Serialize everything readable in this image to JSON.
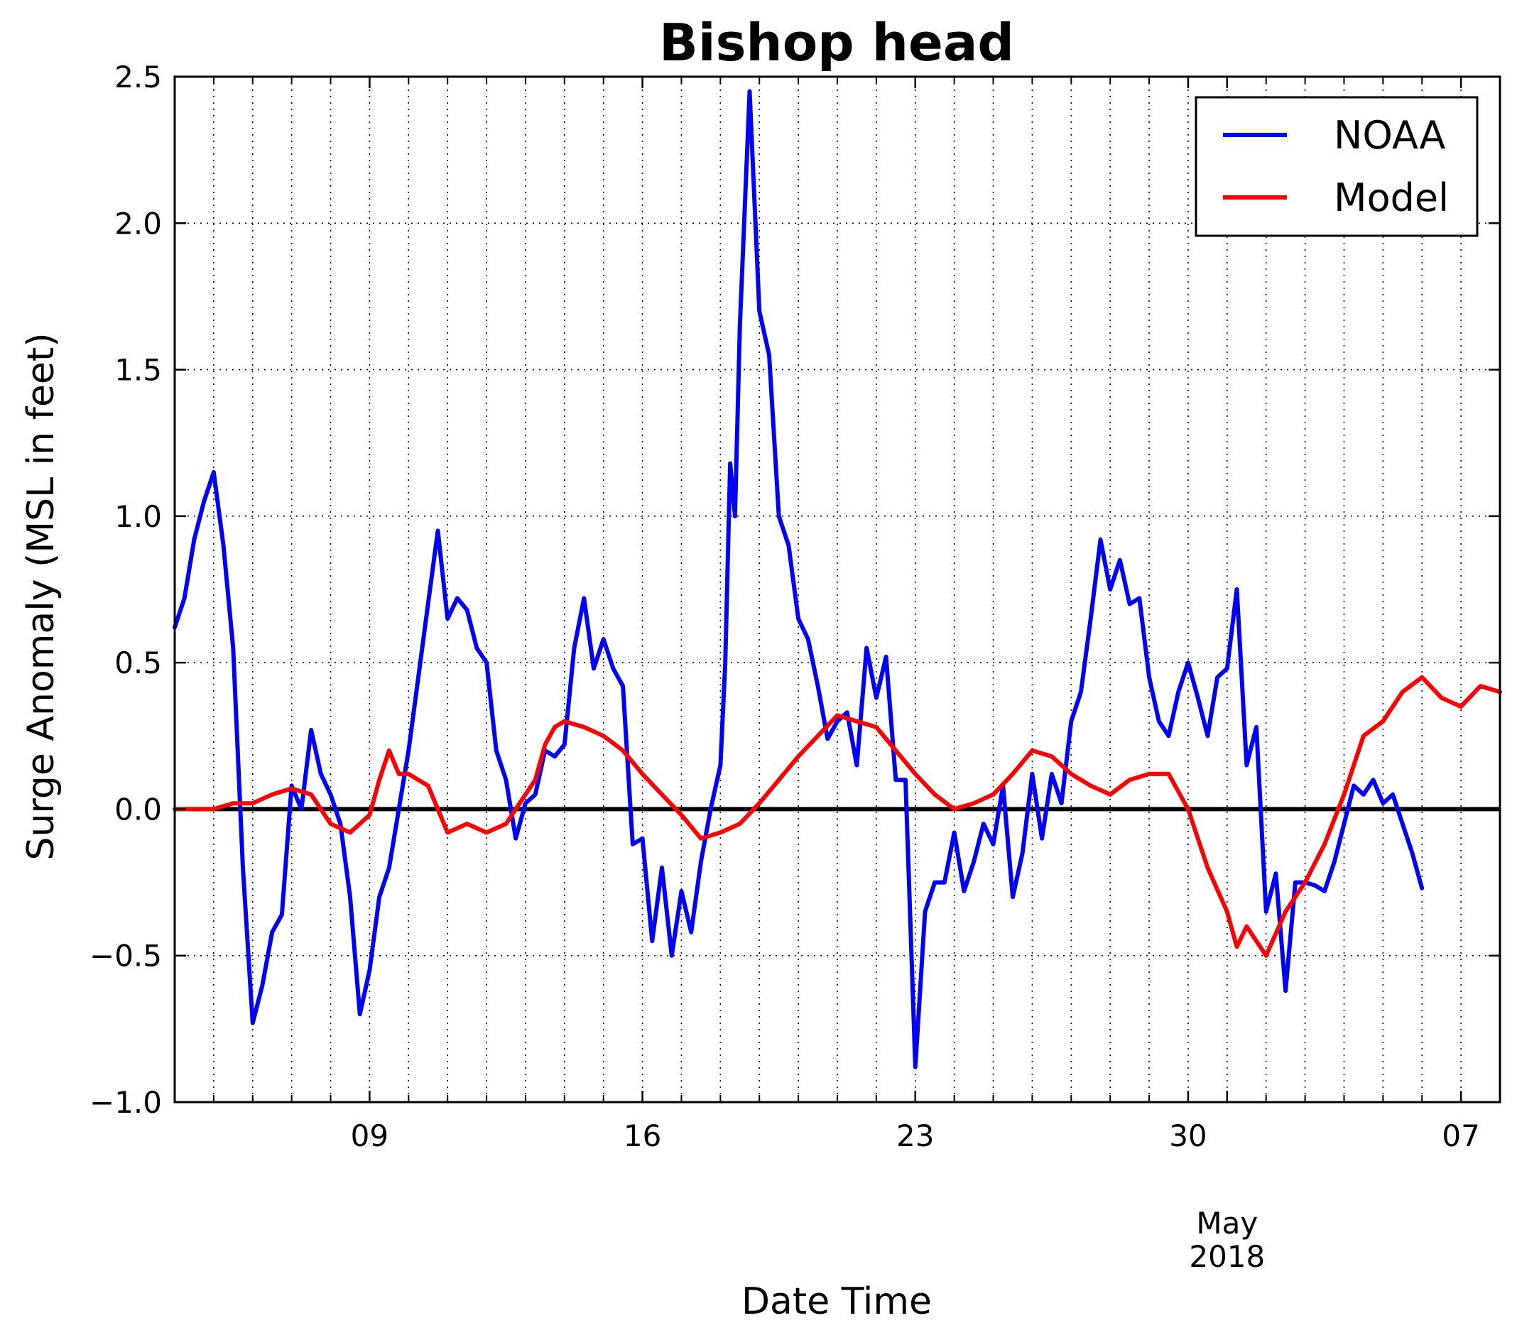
{
  "chart_data": {
    "type": "line",
    "title": "Bishop head",
    "xlabel": "Date Time",
    "ylabel": "Surge Anomaly (MSL in feet)",
    "ylim": [
      -1.0,
      2.5
    ],
    "xlim": [
      "2018-04-04T00:00",
      "2018-05-08T00:00"
    ],
    "y_ticks": [
      "−1.0",
      "−0.5",
      "0.0",
      "0.5",
      "1.0",
      "1.5",
      "2.0",
      "2.5"
    ],
    "y_tick_values": [
      -1.0,
      -0.5,
      0.0,
      0.5,
      1.0,
      1.5,
      2.0,
      2.5
    ],
    "x_major_ticks": [
      {
        "date": "2018-04-09",
        "label": "09"
      },
      {
        "date": "2018-04-16",
        "label": "16"
      },
      {
        "date": "2018-04-23",
        "label": "23"
      },
      {
        "date": "2018-04-30",
        "label": "30"
      },
      {
        "date": "2018-05-07",
        "label": "07"
      }
    ],
    "x_minor_days": [
      "2018-04-05",
      "2018-04-06",
      "2018-04-07",
      "2018-04-08",
      "2018-04-10",
      "2018-04-11",
      "2018-04-12",
      "2018-04-13",
      "2018-04-14",
      "2018-04-15",
      "2018-04-17",
      "2018-04-18",
      "2018-04-19",
      "2018-04-20",
      "2018-04-21",
      "2018-04-22",
      "2018-04-24",
      "2018-04-25",
      "2018-04-26",
      "2018-04-27",
      "2018-04-28",
      "2018-04-29",
      "2018-05-01",
      "2018-05-02",
      "2018-05-03",
      "2018-05-04",
      "2018-05-05",
      "2018-05-06"
    ],
    "month_tick": {
      "date": "2018-05-01",
      "label": "May"
    },
    "year_label": "2018",
    "grid": true,
    "legend_position": "top-right",
    "zero_line": true,
    "series": [
      {
        "name": "NOAA",
        "color": "#0000ff",
        "points": [
          [
            "2018-04-04T00:00",
            0.62
          ],
          [
            "2018-04-04T06:00",
            0.72
          ],
          [
            "2018-04-04T12:00",
            0.92
          ],
          [
            "2018-04-04T18:00",
            1.05
          ],
          [
            "2018-04-05T00:00",
            1.15
          ],
          [
            "2018-04-05T06:00",
            0.9
          ],
          [
            "2018-04-05T12:00",
            0.55
          ],
          [
            "2018-04-05T18:00",
            -0.2
          ],
          [
            "2018-04-06T00:00",
            -0.73
          ],
          [
            "2018-04-06T06:00",
            -0.6
          ],
          [
            "2018-04-06T12:00",
            -0.42
          ],
          [
            "2018-04-06T18:00",
            -0.36
          ],
          [
            "2018-04-07T00:00",
            0.08
          ],
          [
            "2018-04-07T06:00",
            0.0
          ],
          [
            "2018-04-07T12:00",
            0.27
          ],
          [
            "2018-04-07T18:00",
            0.12
          ],
          [
            "2018-04-08T00:00",
            0.05
          ],
          [
            "2018-04-08T06:00",
            -0.05
          ],
          [
            "2018-04-08T12:00",
            -0.3
          ],
          [
            "2018-04-08T18:00",
            -0.7
          ],
          [
            "2018-04-09T00:00",
            -0.55
          ],
          [
            "2018-04-09T06:00",
            -0.3
          ],
          [
            "2018-04-09T12:00",
            -0.2
          ],
          [
            "2018-04-09T18:00",
            0.0
          ],
          [
            "2018-04-10T00:00",
            0.2
          ],
          [
            "2018-04-10T06:00",
            0.45
          ],
          [
            "2018-04-10T12:00",
            0.7
          ],
          [
            "2018-04-10T18:00",
            0.95
          ],
          [
            "2018-04-11T00:00",
            0.65
          ],
          [
            "2018-04-11T06:00",
            0.72
          ],
          [
            "2018-04-11T12:00",
            0.68
          ],
          [
            "2018-04-11T18:00",
            0.55
          ],
          [
            "2018-04-12T00:00",
            0.5
          ],
          [
            "2018-04-12T06:00",
            0.2
          ],
          [
            "2018-04-12T12:00",
            0.1
          ],
          [
            "2018-04-12T18:00",
            -0.1
          ],
          [
            "2018-04-13T00:00",
            0.02
          ],
          [
            "2018-04-13T06:00",
            0.05
          ],
          [
            "2018-04-13T12:00",
            0.2
          ],
          [
            "2018-04-13T18:00",
            0.18
          ],
          [
            "2018-04-14T00:00",
            0.22
          ],
          [
            "2018-04-14T06:00",
            0.55
          ],
          [
            "2018-04-14T12:00",
            0.72
          ],
          [
            "2018-04-14T18:00",
            0.48
          ],
          [
            "2018-04-15T00:00",
            0.58
          ],
          [
            "2018-04-15T06:00",
            0.48
          ],
          [
            "2018-04-15T12:00",
            0.42
          ],
          [
            "2018-04-15T18:00",
            -0.12
          ],
          [
            "2018-04-16T00:00",
            -0.1
          ],
          [
            "2018-04-16T06:00",
            -0.45
          ],
          [
            "2018-04-16T12:00",
            -0.2
          ],
          [
            "2018-04-16T18:00",
            -0.5
          ],
          [
            "2018-04-17T00:00",
            -0.28
          ],
          [
            "2018-04-17T06:00",
            -0.42
          ],
          [
            "2018-04-17T12:00",
            -0.18
          ],
          [
            "2018-04-17T18:00",
            0.0
          ],
          [
            "2018-04-18T00:00",
            0.15
          ],
          [
            "2018-04-18T03:00",
            0.5
          ],
          [
            "2018-04-18T06:00",
            1.18
          ],
          [
            "2018-04-18T09:00",
            1.0
          ],
          [
            "2018-04-18T12:00",
            1.65
          ],
          [
            "2018-04-18T18:00",
            2.45
          ],
          [
            "2018-04-19T00:00",
            1.7
          ],
          [
            "2018-04-19T06:00",
            1.55
          ],
          [
            "2018-04-19T12:00",
            1.0
          ],
          [
            "2018-04-19T18:00",
            0.9
          ],
          [
            "2018-04-20T00:00",
            0.65
          ],
          [
            "2018-04-20T06:00",
            0.58
          ],
          [
            "2018-04-20T12:00",
            0.42
          ],
          [
            "2018-04-20T18:00",
            0.24
          ],
          [
            "2018-04-21T00:00",
            0.3
          ],
          [
            "2018-04-21T06:00",
            0.33
          ],
          [
            "2018-04-21T12:00",
            0.15
          ],
          [
            "2018-04-21T18:00",
            0.55
          ],
          [
            "2018-04-22T00:00",
            0.38
          ],
          [
            "2018-04-22T06:00",
            0.52
          ],
          [
            "2018-04-22T12:00",
            0.1
          ],
          [
            "2018-04-22T18:00",
            0.1
          ],
          [
            "2018-04-23T00:00",
            -0.88
          ],
          [
            "2018-04-23T06:00",
            -0.35
          ],
          [
            "2018-04-23T12:00",
            -0.25
          ],
          [
            "2018-04-23T18:00",
            -0.25
          ],
          [
            "2018-04-24T00:00",
            -0.08
          ],
          [
            "2018-04-24T06:00",
            -0.28
          ],
          [
            "2018-04-24T12:00",
            -0.18
          ],
          [
            "2018-04-24T18:00",
            -0.05
          ],
          [
            "2018-04-25T00:00",
            -0.12
          ],
          [
            "2018-04-25T06:00",
            0.08
          ],
          [
            "2018-04-25T12:00",
            -0.3
          ],
          [
            "2018-04-25T18:00",
            -0.15
          ],
          [
            "2018-04-26T00:00",
            0.12
          ],
          [
            "2018-04-26T06:00",
            -0.1
          ],
          [
            "2018-04-26T12:00",
            0.12
          ],
          [
            "2018-04-26T18:00",
            0.02
          ],
          [
            "2018-04-27T00:00",
            0.3
          ],
          [
            "2018-04-27T06:00",
            0.4
          ],
          [
            "2018-04-27T12:00",
            0.65
          ],
          [
            "2018-04-27T18:00",
            0.92
          ],
          [
            "2018-04-28T00:00",
            0.75
          ],
          [
            "2018-04-28T06:00",
            0.85
          ],
          [
            "2018-04-28T12:00",
            0.7
          ],
          [
            "2018-04-28T18:00",
            0.72
          ],
          [
            "2018-04-29T00:00",
            0.45
          ],
          [
            "2018-04-29T06:00",
            0.3
          ],
          [
            "2018-04-29T12:00",
            0.25
          ],
          [
            "2018-04-29T18:00",
            0.4
          ],
          [
            "2018-04-30T00:00",
            0.5
          ],
          [
            "2018-04-30T06:00",
            0.38
          ],
          [
            "2018-04-30T12:00",
            0.25
          ],
          [
            "2018-04-30T18:00",
            0.45
          ],
          [
            "2018-05-01T00:00",
            0.48
          ],
          [
            "2018-05-01T06:00",
            0.75
          ],
          [
            "2018-05-01T12:00",
            0.15
          ],
          [
            "2018-05-01T18:00",
            0.28
          ],
          [
            "2018-05-02T00:00",
            -0.35
          ],
          [
            "2018-05-02T06:00",
            -0.22
          ],
          [
            "2018-05-02T12:00",
            -0.62
          ],
          [
            "2018-05-02T18:00",
            -0.25
          ],
          [
            "2018-05-03T00:00",
            -0.25
          ],
          [
            "2018-05-03T06:00",
            -0.26
          ],
          [
            "2018-05-03T12:00",
            -0.28
          ],
          [
            "2018-05-03T18:00",
            -0.18
          ],
          [
            "2018-05-04T00:00",
            -0.05
          ],
          [
            "2018-05-04T06:00",
            0.08
          ],
          [
            "2018-05-04T12:00",
            0.05
          ],
          [
            "2018-05-04T18:00",
            0.1
          ],
          [
            "2018-05-05T00:00",
            0.02
          ],
          [
            "2018-05-05T06:00",
            0.05
          ],
          [
            "2018-05-05T12:00",
            -0.05
          ],
          [
            "2018-05-05T18:00",
            -0.15
          ],
          [
            "2018-05-06T00:00",
            -0.27
          ]
        ]
      },
      {
        "name": "Model",
        "color": "#ff0000",
        "points": [
          [
            "2018-04-04T00:00",
            0.0
          ],
          [
            "2018-04-04T12:00",
            0.0
          ],
          [
            "2018-04-05T00:00",
            0.0
          ],
          [
            "2018-04-05T12:00",
            0.02
          ],
          [
            "2018-04-06T00:00",
            0.02
          ],
          [
            "2018-04-06T12:00",
            0.05
          ],
          [
            "2018-04-07T00:00",
            0.07
          ],
          [
            "2018-04-07T12:00",
            0.05
          ],
          [
            "2018-04-08T00:00",
            -0.05
          ],
          [
            "2018-04-08T12:00",
            -0.08
          ],
          [
            "2018-04-09T00:00",
            -0.02
          ],
          [
            "2018-04-09T06:00",
            0.1
          ],
          [
            "2018-04-09T12:00",
            0.2
          ],
          [
            "2018-04-09T18:00",
            0.12
          ],
          [
            "2018-04-10T00:00",
            0.12
          ],
          [
            "2018-04-10T12:00",
            0.08
          ],
          [
            "2018-04-11T00:00",
            -0.08
          ],
          [
            "2018-04-11T12:00",
            -0.05
          ],
          [
            "2018-04-12T00:00",
            -0.08
          ],
          [
            "2018-04-12T12:00",
            -0.05
          ],
          [
            "2018-04-13T00:00",
            0.05
          ],
          [
            "2018-04-13T06:00",
            0.1
          ],
          [
            "2018-04-13T12:00",
            0.22
          ],
          [
            "2018-04-13T18:00",
            0.28
          ],
          [
            "2018-04-14T00:00",
            0.3
          ],
          [
            "2018-04-14T12:00",
            0.28
          ],
          [
            "2018-04-15T00:00",
            0.25
          ],
          [
            "2018-04-15T12:00",
            0.2
          ],
          [
            "2018-04-16T00:00",
            0.12
          ],
          [
            "2018-04-16T12:00",
            0.05
          ],
          [
            "2018-04-17T00:00",
            -0.02
          ],
          [
            "2018-04-17T12:00",
            -0.1
          ],
          [
            "2018-04-18T00:00",
            -0.08
          ],
          [
            "2018-04-18T12:00",
            -0.05
          ],
          [
            "2018-04-19T00:00",
            0.02
          ],
          [
            "2018-04-19T12:00",
            0.1
          ],
          [
            "2018-04-20T00:00",
            0.18
          ],
          [
            "2018-04-20T12:00",
            0.25
          ],
          [
            "2018-04-21T00:00",
            0.32
          ],
          [
            "2018-04-21T12:00",
            0.3
          ],
          [
            "2018-04-22T00:00",
            0.28
          ],
          [
            "2018-04-22T12:00",
            0.2
          ],
          [
            "2018-04-23T00:00",
            0.12
          ],
          [
            "2018-04-23T12:00",
            0.05
          ],
          [
            "2018-04-24T00:00",
            0.0
          ],
          [
            "2018-04-24T12:00",
            0.02
          ],
          [
            "2018-04-25T00:00",
            0.05
          ],
          [
            "2018-04-25T12:00",
            0.12
          ],
          [
            "2018-04-26T00:00",
            0.2
          ],
          [
            "2018-04-26T12:00",
            0.18
          ],
          [
            "2018-04-27T00:00",
            0.12
          ],
          [
            "2018-04-27T12:00",
            0.08
          ],
          [
            "2018-04-28T00:00",
            0.05
          ],
          [
            "2018-04-28T12:00",
            0.1
          ],
          [
            "2018-04-29T00:00",
            0.12
          ],
          [
            "2018-04-29T12:00",
            0.12
          ],
          [
            "2018-04-30T00:00",
            0.0
          ],
          [
            "2018-04-30T12:00",
            -0.2
          ],
          [
            "2018-05-01T00:00",
            -0.35
          ],
          [
            "2018-05-01T06:00",
            -0.47
          ],
          [
            "2018-05-01T12:00",
            -0.4
          ],
          [
            "2018-05-01T18:00",
            -0.45
          ],
          [
            "2018-05-02T00:00",
            -0.5
          ],
          [
            "2018-05-02T12:00",
            -0.35
          ],
          [
            "2018-05-03T00:00",
            -0.25
          ],
          [
            "2018-05-03T12:00",
            -0.12
          ],
          [
            "2018-05-04T00:00",
            0.05
          ],
          [
            "2018-05-04T12:00",
            0.25
          ],
          [
            "2018-05-05T00:00",
            0.3
          ],
          [
            "2018-05-05T12:00",
            0.4
          ],
          [
            "2018-05-06T00:00",
            0.45
          ],
          [
            "2018-05-06T12:00",
            0.38
          ],
          [
            "2018-05-07T00:00",
            0.35
          ],
          [
            "2018-05-07T12:00",
            0.42
          ],
          [
            "2018-05-08T00:00",
            0.4
          ]
        ]
      }
    ]
  }
}
